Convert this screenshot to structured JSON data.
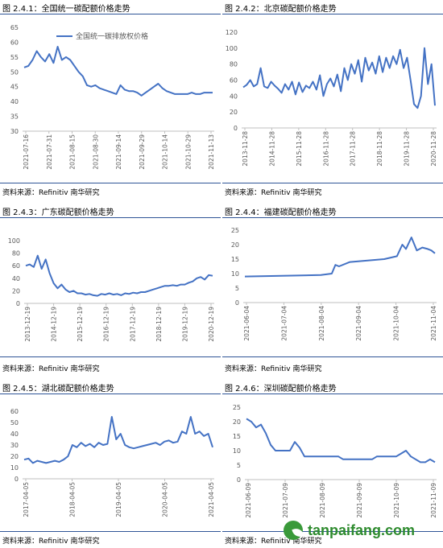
{
  "source_text": "资料来源：Refinitiv 南华研究",
  "watermark": {
    "text": "tanpaifang.com",
    "color": "#2e8b2e"
  },
  "line_color": "#4472c4",
  "chart_data": [
    {
      "id": "p1",
      "type": "line",
      "title": "图 2.4.1：全国统一碳配额价格走势",
      "series": [
        {
          "name": "全国统一碳排放权价格",
          "values": [
            51.5,
            52.0,
            54.0,
            57.0,
            55.0,
            53.5,
            56.0,
            53.0,
            58.5,
            54.0,
            55.0,
            54.0,
            52.0,
            50.0,
            48.5,
            45.5,
            45.0,
            45.5,
            44.5,
            44.0,
            43.5,
            43.0,
            42.5,
            45.5,
            44.0,
            43.5,
            43.5,
            43.0,
            42.0,
            43.0,
            44.0,
            45.0,
            46.0,
            44.5,
            43.5,
            43.0,
            42.5,
            42.5,
            42.5,
            42.5,
            43.0,
            42.5,
            42.5,
            43.0,
            43.0,
            43.0
          ]
        }
      ],
      "x_ticks": [
        "2021-07-16",
        "2021-07-31",
        "2021-08-15",
        "2021-08-30",
        "2021-09-14",
        "2021-09-29",
        "2021-10-14",
        "2021-10-29",
        "2021-11-13"
      ],
      "y_ticks": [
        30,
        35,
        40,
        45,
        50,
        55,
        60,
        65
      ],
      "ylim": [
        30,
        65
      ],
      "legend": "top-left"
    },
    {
      "id": "p2",
      "type": "line",
      "title": "图 2.4.2：北京碳配额价格走势",
      "series": [
        {
          "name": "",
          "values": [
            51,
            54,
            60,
            52,
            55,
            75,
            52,
            50,
            58,
            53,
            49,
            44,
            55,
            48,
            58,
            42,
            57,
            45,
            53,
            50,
            58,
            48,
            66,
            40,
            55,
            62,
            52,
            67,
            46,
            75,
            60,
            80,
            68,
            85,
            58,
            88,
            72,
            82,
            68,
            90,
            70,
            88,
            75,
            90,
            80,
            98,
            75,
            88,
            60,
            30,
            25,
            40,
            100,
            55,
            80,
            28
          ]
        }
      ],
      "x_ticks": [
        "2013-11-28",
        "2014-11-28",
        "2015-11-28",
        "2016-11-28",
        "2017-11-28",
        "2018-11-28",
        "2019-11-28",
        "2020-11-28"
      ],
      "y_ticks": [
        0,
        20,
        40,
        60,
        80,
        100,
        120
      ],
      "ylim": [
        0,
        120
      ]
    },
    {
      "id": "p3",
      "type": "line",
      "title": "图 2.4.3：广东碳配额价格走势",
      "series": [
        {
          "name": "",
          "values": [
            60,
            62,
            58,
            76,
            55,
            70,
            48,
            32,
            24,
            30,
            22,
            18,
            20,
            16,
            16,
            14,
            15,
            13,
            12,
            15,
            14,
            16,
            14,
            15,
            13,
            16,
            15,
            17,
            16,
            18,
            18,
            20,
            22,
            24,
            26,
            28,
            28,
            29,
            28,
            30,
            30,
            33,
            35,
            40,
            42,
            38,
            45,
            44
          ]
        }
      ],
      "x_ticks": [
        "2013-12-19",
        "2014-12-19",
        "2015-12-19",
        "2016-12-19",
        "2017-12-19",
        "2018-12-19",
        "2019-12-19",
        "2020-12-19"
      ],
      "y_ticks": [
        0,
        20,
        40,
        60,
        80,
        100
      ],
      "ylim": [
        0,
        100
      ]
    },
    {
      "id": "p4",
      "type": "line",
      "title": "图 2.4.4：福建碳配额价格走势",
      "series": [
        {
          "name": "",
          "values": [
            9.0,
            9.5,
            10.0,
            13.0,
            12.5,
            14.0,
            15.0,
            16.0,
            20.0,
            18.5,
            22.5,
            18.0,
            19.0,
            18.5,
            18.0,
            17.0
          ]
        }
      ],
      "x": [
        0,
        42,
        48,
        50,
        52,
        58,
        77,
        84,
        87,
        89,
        92,
        95,
        98,
        101,
        103,
        105
      ],
      "x_ticks": [
        "2021-06-04",
        "2021-07-04",
        "2021-08-04",
        "2021-09-04",
        "2021-10-04",
        "2021-11-04"
      ],
      "y_ticks": [
        0,
        5,
        10,
        15,
        20,
        25
      ],
      "ylim": [
        0,
        25
      ]
    },
    {
      "id": "p5",
      "type": "line",
      "title": "图 2.4.5：湖北碳配额价格走势",
      "series": [
        {
          "name": "",
          "values": [
            17,
            18,
            14,
            16,
            15,
            14,
            15,
            16,
            15,
            17,
            20,
            30,
            28,
            32,
            29,
            31,
            28,
            32,
            30,
            31,
            55,
            35,
            40,
            30,
            28,
            27,
            28,
            29,
            30,
            31,
            32,
            30,
            33,
            34,
            32,
            33,
            42,
            40,
            55,
            40,
            42,
            38,
            40,
            28
          ]
        }
      ],
      "x_ticks": [
        "2017-04-05",
        "2018-04-05",
        "2019-04-05",
        "2020-04-05",
        "2021-04-05"
      ],
      "y_ticks": [
        0,
        10,
        20,
        30,
        40,
        50,
        60
      ],
      "ylim": [
        0,
        60
      ]
    },
    {
      "id": "p6",
      "type": "line",
      "title": "图 2.4.6：深圳碳配额价格走势",
      "series": [
        {
          "name": "",
          "values": [
            21,
            20,
            18,
            19,
            16,
            12,
            10,
            10,
            10,
            10,
            13,
            11,
            8,
            8,
            8,
            8,
            8,
            8,
            8,
            8,
            7,
            7,
            7,
            7,
            7,
            7,
            7,
            8,
            8,
            8,
            8,
            8,
            9,
            10,
            8,
            7,
            6,
            6,
            7,
            6
          ]
        }
      ],
      "x_ticks": [
        "2021-06-09",
        "2021-07-09",
        "2021-08-09",
        "2021-09-09",
        "2021-10-09",
        "2021-11-09"
      ],
      "y_ticks": [
        0,
        5,
        10,
        15,
        20,
        25
      ],
      "ylim": [
        0,
        25
      ]
    }
  ]
}
